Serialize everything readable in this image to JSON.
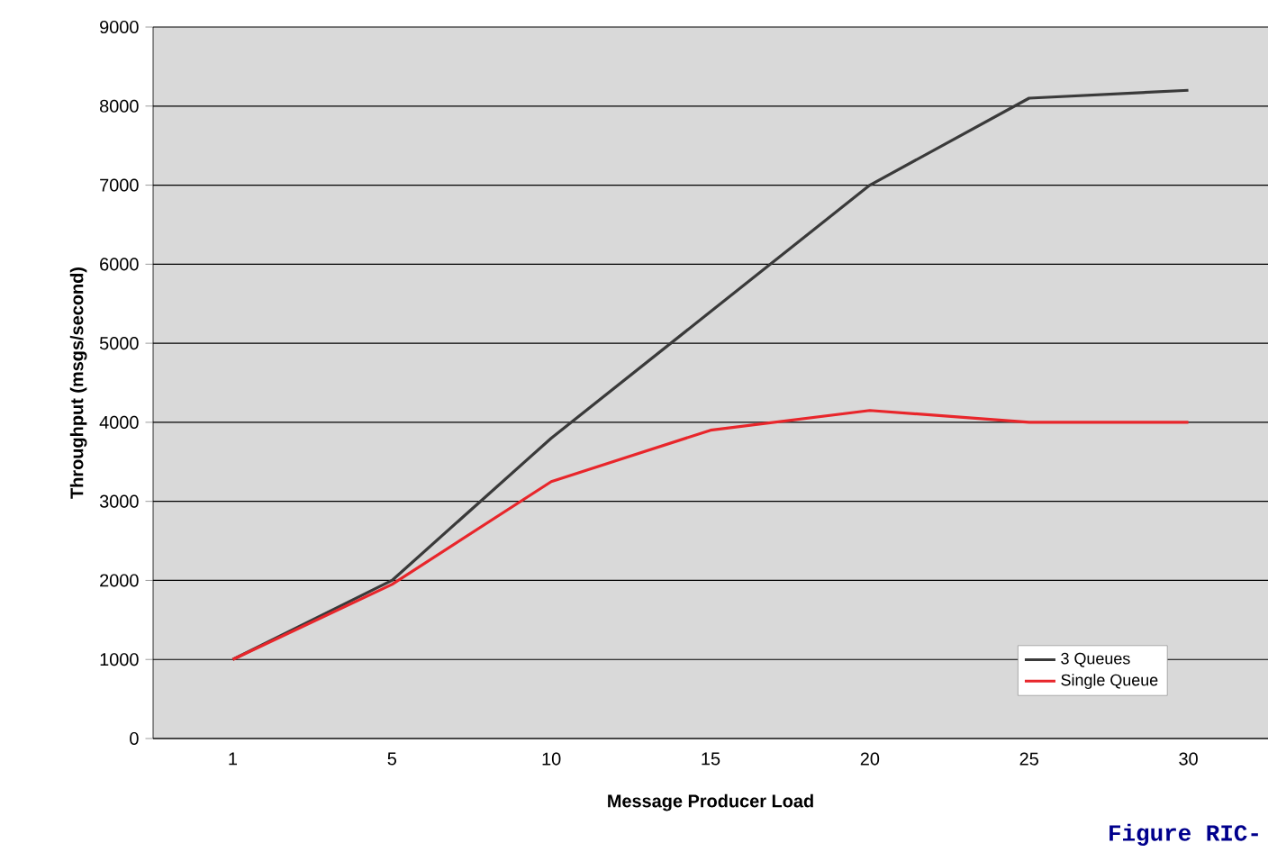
{
  "chart_data": {
    "type": "line",
    "xlabel": "Message Producer Load",
    "ylabel": "Throughput (msgs/second)",
    "categories": [
      "1",
      "5",
      "10",
      "15",
      "20",
      "25",
      "30"
    ],
    "series": [
      {
        "name": "Single Queue",
        "color": "#e8262b",
        "values": [
          1000,
          1950,
          3250,
          3900,
          4150,
          4000,
          4000
        ]
      },
      {
        "name": "3 Queues",
        "color": "#3a3a3a",
        "values": [
          1000,
          2000,
          3800,
          5400,
          7000,
          8100,
          8200
        ]
      }
    ],
    "ylim": [
      0,
      9000
    ],
    "yticks": [
      0,
      1000,
      2000,
      3000,
      4000,
      5000,
      6000,
      7000,
      8000,
      9000
    ],
    "grid": "y",
    "legend": "bottom right",
    "marker": "none",
    "line_style": "solid",
    "annotations": [
      "Figure RIC-"
    ]
  }
}
